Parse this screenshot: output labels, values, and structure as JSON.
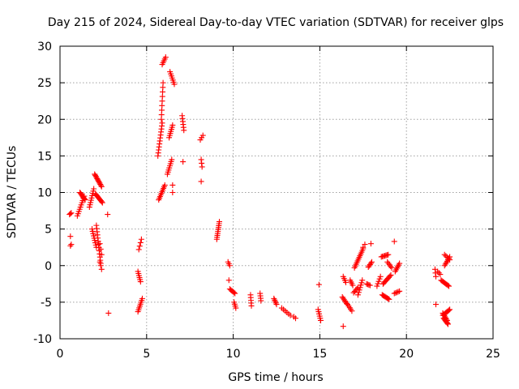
{
  "chart_data": {
    "type": "scatter",
    "title": "Day 215 of 2024, Sidereal Day-to-day VTEC variation (SDTVAR) for receiver glps",
    "xlabel": "GPS time / hours",
    "ylabel": "SDTVAR / TECUs",
    "xlim": [
      0,
      25
    ],
    "ylim": [
      -10,
      30
    ],
    "x_ticks": [
      "0",
      "5",
      "10",
      "15",
      "20",
      "25"
    ],
    "y_ticks": [
      "-10",
      "-5",
      "0",
      "5",
      "10",
      "15",
      "20",
      "25",
      "30"
    ],
    "grid": true,
    "marker": "+",
    "marker_color": "#ff0000",
    "segments": [
      [
        0.55,
        7.0,
        0.65,
        7.2,
        3
      ],
      [
        0.6,
        4.0,
        0.6,
        4.0,
        1
      ],
      [
        0.6,
        2.7,
        0.65,
        2.9,
        2
      ],
      [
        1.0,
        6.8,
        1.4,
        9.5,
        10
      ],
      [
        1.15,
        10.0,
        1.45,
        9.0,
        9
      ],
      [
        1.7,
        8.0,
        1.95,
        10.5,
        9
      ],
      [
        1.85,
        5.0,
        2.1,
        2.5,
        9
      ],
      [
        2.0,
        12.5,
        2.4,
        10.8,
        12
      ],
      [
        2.05,
        9.8,
        2.45,
        8.6,
        10
      ],
      [
        2.1,
        5.5,
        2.35,
        0.3,
        13
      ],
      [
        2.3,
        0.5,
        2.4,
        -0.5,
        3
      ],
      [
        2.3,
        3.0,
        2.4,
        1.5,
        3
      ],
      [
        2.75,
        7.0,
        2.75,
        7.0,
        1
      ],
      [
        2.8,
        -6.5,
        2.8,
        -6.5,
        1
      ],
      [
        4.5,
        -0.8,
        4.65,
        -2.2,
        6
      ],
      [
        4.55,
        2.2,
        4.7,
        3.6,
        4
      ],
      [
        4.5,
        -6.3,
        4.75,
        -4.5,
        8
      ],
      [
        5.65,
        15.0,
        5.9,
        19.5,
        12
      ],
      [
        5.7,
        9.0,
        6.05,
        11.0,
        10
      ],
      [
        5.85,
        20.0,
        5.95,
        25.0,
        9
      ],
      [
        5.9,
        27.5,
        6.1,
        28.5,
        5
      ],
      [
        6.2,
        12.5,
        6.45,
        14.5,
        8
      ],
      [
        6.3,
        17.5,
        6.5,
        19.2,
        7
      ],
      [
        6.35,
        26.5,
        6.6,
        24.8,
        7
      ],
      [
        6.5,
        10.0,
        6.5,
        11.0,
        2
      ],
      [
        7.05,
        20.5,
        7.15,
        18.5,
        6
      ],
      [
        7.1,
        14.2,
        7.1,
        14.2,
        1
      ],
      [
        8.1,
        17.2,
        8.25,
        17.8,
        3
      ],
      [
        8.15,
        14.5,
        8.2,
        13.5,
        3
      ],
      [
        8.15,
        11.5,
        8.15,
        11.5,
        1
      ],
      [
        9.05,
        3.6,
        9.2,
        6.0,
        10
      ],
      [
        9.7,
        0.5,
        9.8,
        0.0,
        3
      ],
      [
        9.75,
        -2.0,
        9.8,
        -2.0,
        1
      ],
      [
        9.8,
        -3.2,
        10.1,
        -3.8,
        6
      ],
      [
        10.05,
        -5.0,
        10.15,
        -5.8,
        4
      ],
      [
        11.0,
        -4.0,
        11.05,
        -5.5,
        5
      ],
      [
        11.55,
        -3.8,
        11.6,
        -4.8,
        4
      ],
      [
        12.35,
        -4.5,
        12.5,
        -5.3,
        5
      ],
      [
        12.8,
        -5.8,
        13.3,
        -6.8,
        6
      ],
      [
        13.5,
        -7.0,
        13.6,
        -7.2,
        2
      ],
      [
        14.95,
        -2.6,
        14.95,
        -2.6,
        1
      ],
      [
        14.9,
        -6.0,
        15.05,
        -7.5,
        6
      ],
      [
        16.3,
        -4.3,
        16.55,
        -5.2,
        6
      ],
      [
        16.35,
        -1.5,
        16.5,
        -2.3,
        4
      ],
      [
        16.35,
        -8.3,
        16.35,
        -8.3,
        1
      ],
      [
        16.6,
        -5.3,
        16.85,
        -6.2,
        5
      ],
      [
        16.75,
        -2.0,
        16.9,
        -2.7,
        4
      ],
      [
        16.95,
        -3.7,
        17.2,
        -3.0,
        5
      ],
      [
        17.0,
        -0.3,
        17.5,
        2.3,
        12
      ],
      [
        17.2,
        -4.0,
        17.45,
        -2.0,
        7
      ],
      [
        17.5,
        2.5,
        17.6,
        2.9,
        2
      ],
      [
        17.7,
        -2.5,
        17.9,
        -2.7,
        4
      ],
      [
        17.8,
        -0.2,
        18.0,
        0.5,
        5
      ],
      [
        17.95,
        3.0,
        17.95,
        3.0,
        1
      ],
      [
        18.3,
        -2.8,
        18.5,
        -1.5,
        5
      ],
      [
        18.55,
        1.2,
        18.95,
        1.5,
        7
      ],
      [
        18.6,
        -4.0,
        19.0,
        -4.6,
        8
      ],
      [
        18.65,
        -2.5,
        19.1,
        -1.3,
        9
      ],
      [
        18.9,
        0.5,
        19.15,
        -0.3,
        5
      ],
      [
        19.3,
        3.3,
        19.3,
        3.3,
        1
      ],
      [
        19.35,
        -0.8,
        19.6,
        0.3,
        6
      ],
      [
        19.3,
        -3.8,
        19.6,
        -3.5,
        5
      ],
      [
        21.65,
        -0.5,
        21.7,
        -1.5,
        3
      ],
      [
        21.7,
        -5.3,
        21.7,
        -5.3,
        1
      ],
      [
        21.8,
        -0.8,
        21.95,
        -1.2,
        3
      ],
      [
        22.1,
        -6.8,
        22.5,
        -6.0,
        8
      ],
      [
        22.15,
        -7.2,
        22.4,
        -8.0,
        8
      ],
      [
        22.0,
        -2.0,
        22.45,
        -2.8,
        9
      ],
      [
        22.2,
        0.0,
        22.5,
        1.2,
        7
      ],
      [
        22.2,
        1.5,
        22.5,
        0.8,
        5
      ],
      [
        22.1,
        -6.5,
        22.35,
        -7.5,
        7
      ]
    ]
  }
}
